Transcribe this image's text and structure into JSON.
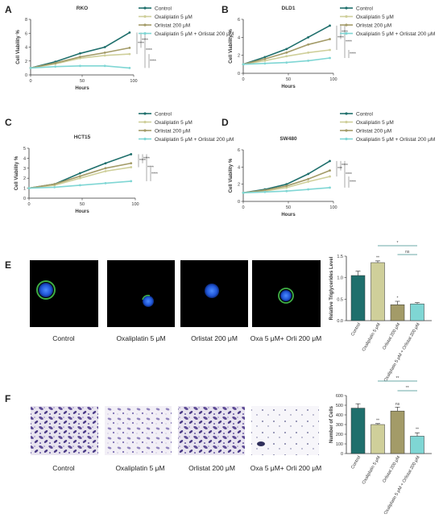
{
  "panel_letters": [
    "A",
    "B",
    "C",
    "D",
    "E",
    "F"
  ],
  "series_colors": [
    "#1f6f6c",
    "#cfcf9a",
    "#a39b68",
    "#7fd6d4"
  ],
  "legend": [
    "Control",
    "Oxaliplatin 5 μM",
    "Orlistat 200 μM",
    "Oxaliplatin 5 μM + Orlistat 200 μM"
  ],
  "image_captions": [
    "Control",
    "Oxaliplatin 5 μM",
    "Orlistat 200 μM",
    "Oxa 5 μM+ Orli 200 μM"
  ],
  "chart_data": [
    {
      "panel": "A",
      "type": "line",
      "title": "RKO",
      "xlabel": "Hours",
      "ylabel": "Cell Viability %",
      "x": [
        0,
        24,
        48,
        72,
        96
      ],
      "xticks": [
        "0",
        "50",
        "100"
      ],
      "xlim": [
        0,
        100
      ],
      "yticks": [
        "0",
        "2",
        "4",
        "6",
        "8"
      ],
      "ylim": [
        0,
        8
      ],
      "series": [
        {
          "name": "Control",
          "values": [
            1.0,
            1.9,
            3.1,
            4.0,
            6.1
          ]
        },
        {
          "name": "Oxaliplatin 5 μM",
          "values": [
            1.0,
            1.6,
            2.4,
            2.8,
            3.0
          ]
        },
        {
          "name": "Orlistat 200 μM",
          "values": [
            1.0,
            1.7,
            2.6,
            3.2,
            3.9
          ]
        },
        {
          "name": "Oxaliplatin 5 μM + Orlistat 200 μM",
          "values": [
            1.0,
            1.2,
            1.3,
            1.3,
            1.0
          ]
        }
      ],
      "significance": [
        "****",
        "****",
        "****",
        "****"
      ]
    },
    {
      "panel": "B",
      "type": "line",
      "title": "DLD1",
      "xlabel": "Hours",
      "ylabel": "Cell Viability %",
      "x": [
        0,
        24,
        48,
        72,
        96
      ],
      "xticks": [
        "0",
        "50",
        "100"
      ],
      "xlim": [
        0,
        100
      ],
      "yticks": [
        "0",
        "2",
        "4",
        "6"
      ],
      "ylim": [
        0,
        6
      ],
      "series": [
        {
          "name": "Control",
          "values": [
            1.0,
            1.8,
            2.7,
            4.0,
            5.3
          ]
        },
        {
          "name": "Oxaliplatin 5 μM",
          "values": [
            1.0,
            1.4,
            1.9,
            2.3,
            2.6
          ]
        },
        {
          "name": "Orlistat 200 μM",
          "values": [
            1.0,
            1.6,
            2.3,
            3.2,
            3.8
          ]
        },
        {
          "name": "Oxaliplatin 5 μM + Orlistat 200 μM",
          "values": [
            1.0,
            1.1,
            1.2,
            1.4,
            1.7
          ]
        }
      ],
      "significance": [
        "****",
        "****",
        "****",
        "****"
      ]
    },
    {
      "panel": "C",
      "type": "line",
      "title": "HCT15",
      "xlabel": "Hours",
      "ylabel": "Cell Viability %",
      "x": [
        0,
        24,
        48,
        72,
        96
      ],
      "xticks": [
        "0",
        "50",
        "100"
      ],
      "xlim": [
        0,
        100
      ],
      "yticks": [
        "0",
        "1",
        "2",
        "3",
        "4",
        "5"
      ],
      "ylim": [
        0,
        5
      ],
      "series": [
        {
          "name": "Control",
          "values": [
            1.0,
            1.4,
            2.5,
            3.5,
            4.4
          ]
        },
        {
          "name": "Oxaliplatin 5 μM",
          "values": [
            1.0,
            1.3,
            2.0,
            2.7,
            3.1
          ]
        },
        {
          "name": "Orlistat 200 μM",
          "values": [
            1.0,
            1.4,
            2.2,
            3.0,
            3.5
          ]
        },
        {
          "name": "Oxaliplatin 5 μM + Orlistat 200 μM",
          "values": [
            1.0,
            1.1,
            1.3,
            1.5,
            1.7
          ]
        }
      ],
      "significance": [
        "****",
        "****",
        "****",
        "****"
      ]
    },
    {
      "panel": "D",
      "type": "line",
      "title": "SW480",
      "xlabel": "Hours",
      "ylabel": "Cell Viability %",
      "x": [
        0,
        24,
        48,
        72,
        96
      ],
      "xticks": [
        "0",
        "50",
        "100"
      ],
      "xlim": [
        0,
        100
      ],
      "yticks": [
        "0",
        "2",
        "4",
        "6"
      ],
      "ylim": [
        0,
        6
      ],
      "series": [
        {
          "name": "Control",
          "values": [
            1.0,
            1.4,
            2.0,
            3.2,
            4.7
          ]
        },
        {
          "name": "Oxaliplatin 5 μM",
          "values": [
            1.0,
            1.2,
            1.6,
            2.3,
            2.9
          ]
        },
        {
          "name": "Orlistat 200 μM",
          "values": [
            1.0,
            1.3,
            1.8,
            2.6,
            3.6
          ]
        },
        {
          "name": "Oxaliplatin 5 μM + Orlistat 200 μM",
          "values": [
            1.0,
            1.1,
            1.2,
            1.4,
            1.6
          ]
        }
      ],
      "significance": [
        "***",
        "****",
        "****",
        "****"
      ]
    },
    {
      "panel": "E",
      "type": "bar",
      "ylabel": "Relative Triglycerides Level",
      "categories": [
        "Control",
        "Oxaliplatin 5 μM",
        "Orlistat 200 μM",
        "Oxaliplatin 5 μM + Orlistat 200 μM"
      ],
      "values": [
        1.05,
        1.35,
        0.37,
        0.39
      ],
      "errors": [
        0.1,
        0.04,
        0.08,
        0.03
      ],
      "yticks": [
        "0.0",
        "0.5",
        "1.0",
        "1.5"
      ],
      "ylim": [
        0,
        1.5
      ],
      "bar_labels": [
        "",
        "**",
        "*",
        ""
      ],
      "brackets": [
        {
          "from": 1,
          "to": 3,
          "label": "*"
        },
        {
          "from": 2,
          "to": 3,
          "label": "ns"
        }
      ]
    },
    {
      "panel": "F",
      "type": "bar",
      "ylabel": "Number of Cells",
      "categories": [
        "Control",
        "Oxaliplatin 5 μM",
        "Orlistat 200 μM",
        "Oxaliplatin 5 μM + Orlistat 200 μM"
      ],
      "values": [
        470,
        300,
        440,
        180
      ],
      "errors": [
        45,
        10,
        40,
        35
      ],
      "yticks": [
        "0",
        "100",
        "200",
        "300",
        "400",
        "500",
        "600"
      ],
      "ylim": [
        0,
        600
      ],
      "bar_labels": [
        "",
        "**",
        "ns",
        "**"
      ],
      "brackets": [
        {
          "from": 1,
          "to": 3,
          "label": "**"
        },
        {
          "from": 2,
          "to": 3,
          "label": "**"
        }
      ]
    }
  ]
}
